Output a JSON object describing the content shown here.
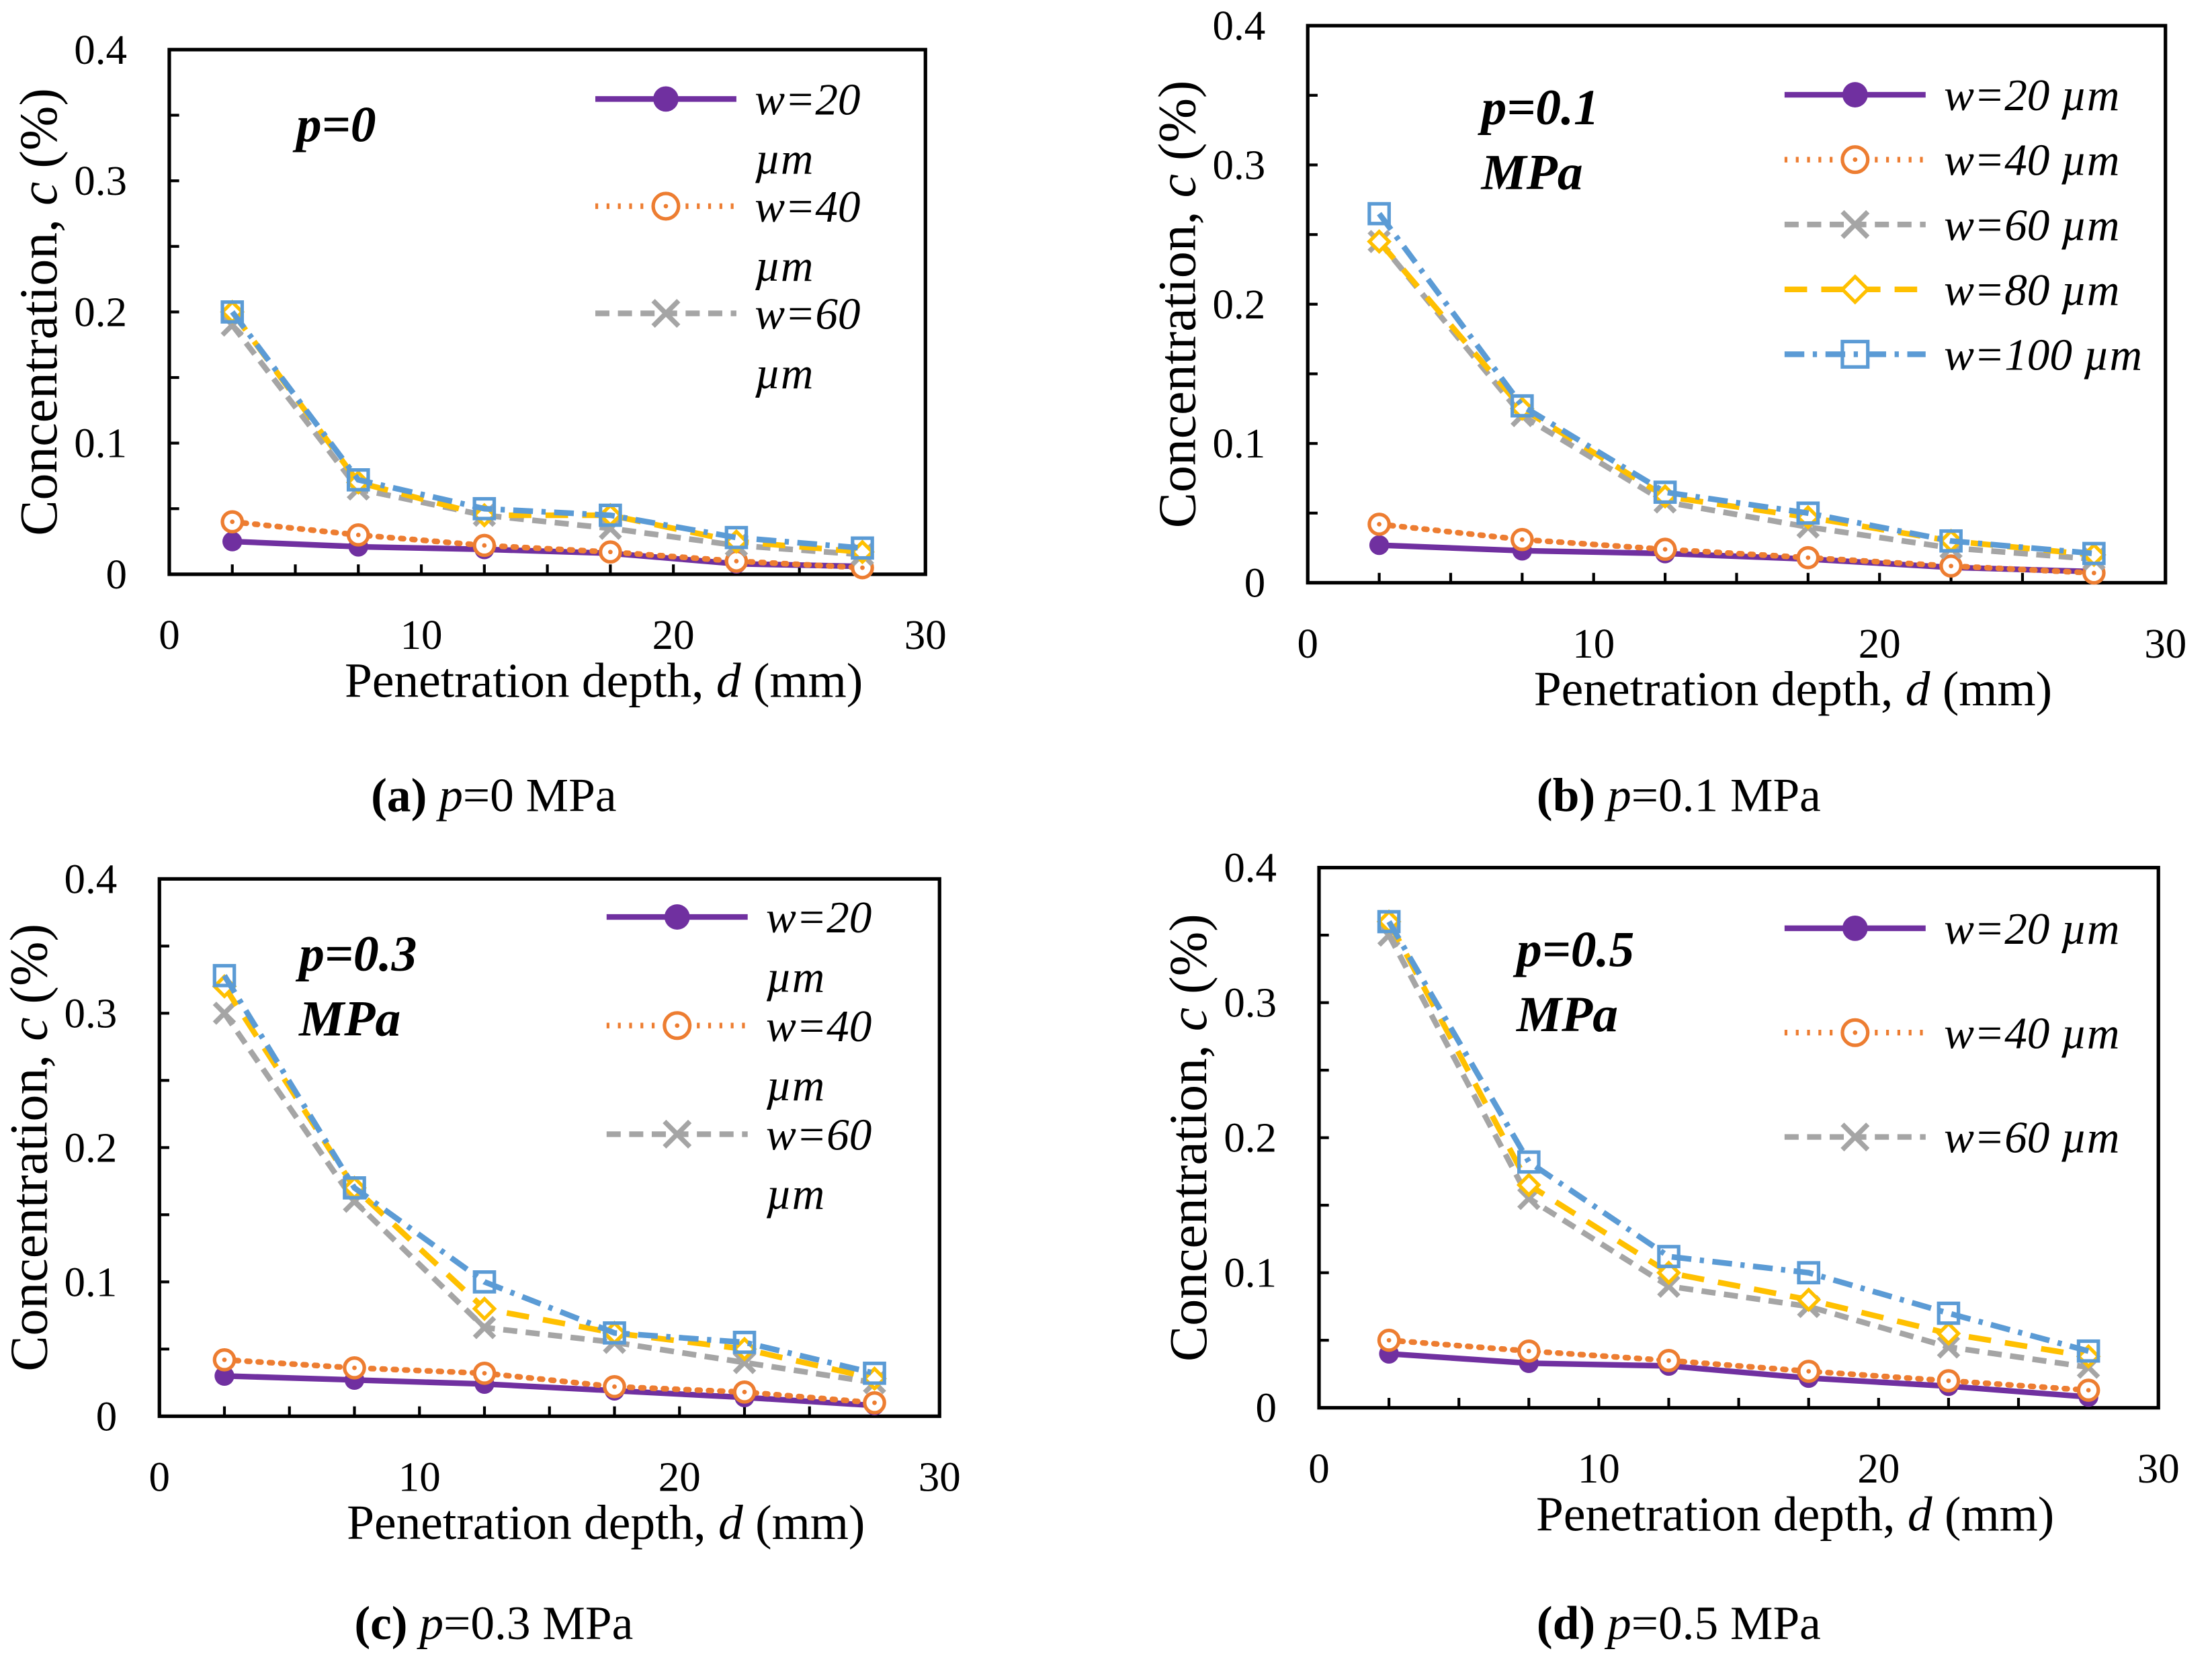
{
  "chart_data": [
    {
      "type": "line",
      "panel_label": "(a)",
      "caption_var": "p",
      "caption_rest": "=0 MPa",
      "annotation": [
        "p=0"
      ],
      "xlabel_pre": "Penetration depth, ",
      "xlabel_var": "d",
      "xlabel_post": " (mm)",
      "ylabel_pre": "Concentration, ",
      "ylabel_var": "c",
      "ylabel_post": " (%)",
      "xlim": [
        0,
        30
      ],
      "ylim": [
        0,
        0.4
      ],
      "xticks": [
        "0",
        "10",
        "20",
        "30"
      ],
      "yticks": [
        "0",
        "0.1",
        "0.2",
        "0.3",
        "0.4"
      ],
      "grid": false,
      "legend_position": "top-right",
      "x": [
        2.5,
        7.5,
        12.5,
        17.5,
        22.5,
        27.5
      ],
      "series": [
        {
          "name": "w=20 µm",
          "values": [
            0.025,
            0.021,
            0.019,
            0.016,
            0.008,
            0.006
          ]
        },
        {
          "name": "w=40 µm",
          "values": [
            0.04,
            0.03,
            0.022,
            0.017,
            0.01,
            0.005
          ]
        },
        {
          "name": "w=60 µm",
          "values": [
            0.19,
            0.065,
            0.045,
            0.035,
            0.022,
            0.015
          ]
        },
        {
          "values": [
            0.2,
            0.07,
            0.045,
            0.045,
            0.025,
            0.017
          ]
        },
        {
          "values": [
            0.2,
            0.072,
            0.05,
            0.045,
            0.028,
            0.02
          ]
        }
      ]
    },
    {
      "type": "line",
      "panel_label": "(b)",
      "caption_var": "p",
      "caption_rest": "=0.1 MPa",
      "annotation": [
        "p=0.1",
        "MPa"
      ],
      "xlabel_pre": "Penetration depth, ",
      "xlabel_var": "d",
      "xlabel_post": " (mm)",
      "ylabel_pre": "Concentration, ",
      "ylabel_var": "c",
      "ylabel_post": " (%)",
      "xlim": [
        0,
        30
      ],
      "ylim": [
        0,
        0.4
      ],
      "xticks": [
        "0",
        "10",
        "20",
        "30"
      ],
      "yticks": [
        "0",
        "0.1",
        "0.2",
        "0.3",
        "0.4"
      ],
      "grid": false,
      "legend_position": "top-right",
      "x": [
        2.5,
        7.5,
        12.5,
        17.5,
        22.5,
        27.5
      ],
      "series": [
        {
          "name": "w=20 µm",
          "values": [
            0.027,
            0.023,
            0.021,
            0.017,
            0.011,
            0.008
          ]
        },
        {
          "name": "w=40 µm",
          "values": [
            0.042,
            0.031,
            0.024,
            0.018,
            0.012,
            0.007
          ]
        },
        {
          "name": "w=60 µm",
          "values": [
            0.245,
            0.12,
            0.058,
            0.04,
            0.025,
            0.017
          ]
        },
        {
          "name": "w=80 µm",
          "values": [
            0.245,
            0.125,
            0.062,
            0.047,
            0.03,
            0.02
          ]
        },
        {
          "name": "w=100 µm",
          "values": [
            0.265,
            0.127,
            0.065,
            0.05,
            0.03,
            0.021
          ]
        }
      ]
    },
    {
      "type": "line",
      "panel_label": "(c)",
      "caption_var": "p",
      "caption_rest": "=0.3 MPa",
      "annotation": [
        "p=0.3",
        "MPa"
      ],
      "xlabel_pre": "Penetration depth, ",
      "xlabel_var": "d",
      "xlabel_post": " (mm)",
      "ylabel_pre": "Concentration, ",
      "ylabel_var": "c",
      "ylabel_post": " (%)",
      "xlim": [
        0,
        30
      ],
      "ylim": [
        0,
        0.4
      ],
      "xticks": [
        "0",
        "10",
        "20",
        "30"
      ],
      "yticks": [
        "0",
        "0.1",
        "0.2",
        "0.3",
        "0.4"
      ],
      "grid": false,
      "legend_position": "top-right",
      "x": [
        2.5,
        7.5,
        12.5,
        17.5,
        22.5,
        27.5
      ],
      "series": [
        {
          "name": "w=20 µm",
          "values": [
            0.03,
            0.027,
            0.024,
            0.019,
            0.014,
            0.008
          ]
        },
        {
          "name": "w=40 µm",
          "values": [
            0.042,
            0.036,
            0.032,
            0.022,
            0.018,
            0.01
          ]
        },
        {
          "name": "w=60 µm",
          "values": [
            0.3,
            0.16,
            0.066,
            0.055,
            0.04,
            0.025
          ]
        },
        {
          "values": [
            0.32,
            0.17,
            0.08,
            0.062,
            0.05,
            0.028
          ]
        },
        {
          "values": [
            0.328,
            0.17,
            0.1,
            0.062,
            0.055,
            0.032
          ]
        }
      ]
    },
    {
      "type": "line",
      "panel_label": "(d)",
      "caption_var": "p",
      "caption_rest": "=0.5 MPa",
      "annotation": [
        "p=0.5",
        "MPa"
      ],
      "xlabel_pre": "Penetration depth, ",
      "xlabel_var": "d",
      "xlabel_post": " (mm)",
      "ylabel_pre": "Concentration, ",
      "ylabel_var": "c",
      "ylabel_post": " (%)",
      "xlim": [
        0,
        30
      ],
      "ylim": [
        0,
        0.4
      ],
      "xticks": [
        "0",
        "10",
        "20",
        "30"
      ],
      "yticks": [
        "0",
        "0.1",
        "0.2",
        "0.3",
        "0.4"
      ],
      "grid": false,
      "legend_position": "top-right",
      "x": [
        2.5,
        7.5,
        12.5,
        17.5,
        22.5,
        27.5
      ],
      "series": [
        {
          "name": "w=20 µm",
          "values": [
            0.04,
            0.033,
            0.031,
            0.022,
            0.016,
            0.008
          ]
        },
        {
          "name": "w=40 µm",
          "values": [
            0.05,
            0.042,
            0.035,
            0.027,
            0.02,
            0.013
          ]
        },
        {
          "name": "w=60 µm",
          "values": [
            0.35,
            0.155,
            0.09,
            0.075,
            0.045,
            0.03
          ]
        },
        {
          "values": [
            0.36,
            0.165,
            0.1,
            0.08,
            0.055,
            0.038
          ]
        },
        {
          "values": [
            0.36,
            0.182,
            0.112,
            0.1,
            0.07,
            0.042
          ]
        }
      ]
    }
  ],
  "series_styles": [
    {
      "color": "#7030A0",
      "line": "solid",
      "marker": "filled-circle"
    },
    {
      "color": "#ED7D31",
      "line": "dotted",
      "marker": "open-circle"
    },
    {
      "color": "#A5A5A5",
      "line": "dashed",
      "marker": "x"
    },
    {
      "color": "#FFC000",
      "line": "long-dash",
      "marker": "diamond"
    },
    {
      "color": "#5B9BD5",
      "line": "dash-dot",
      "marker": "open-square"
    }
  ]
}
